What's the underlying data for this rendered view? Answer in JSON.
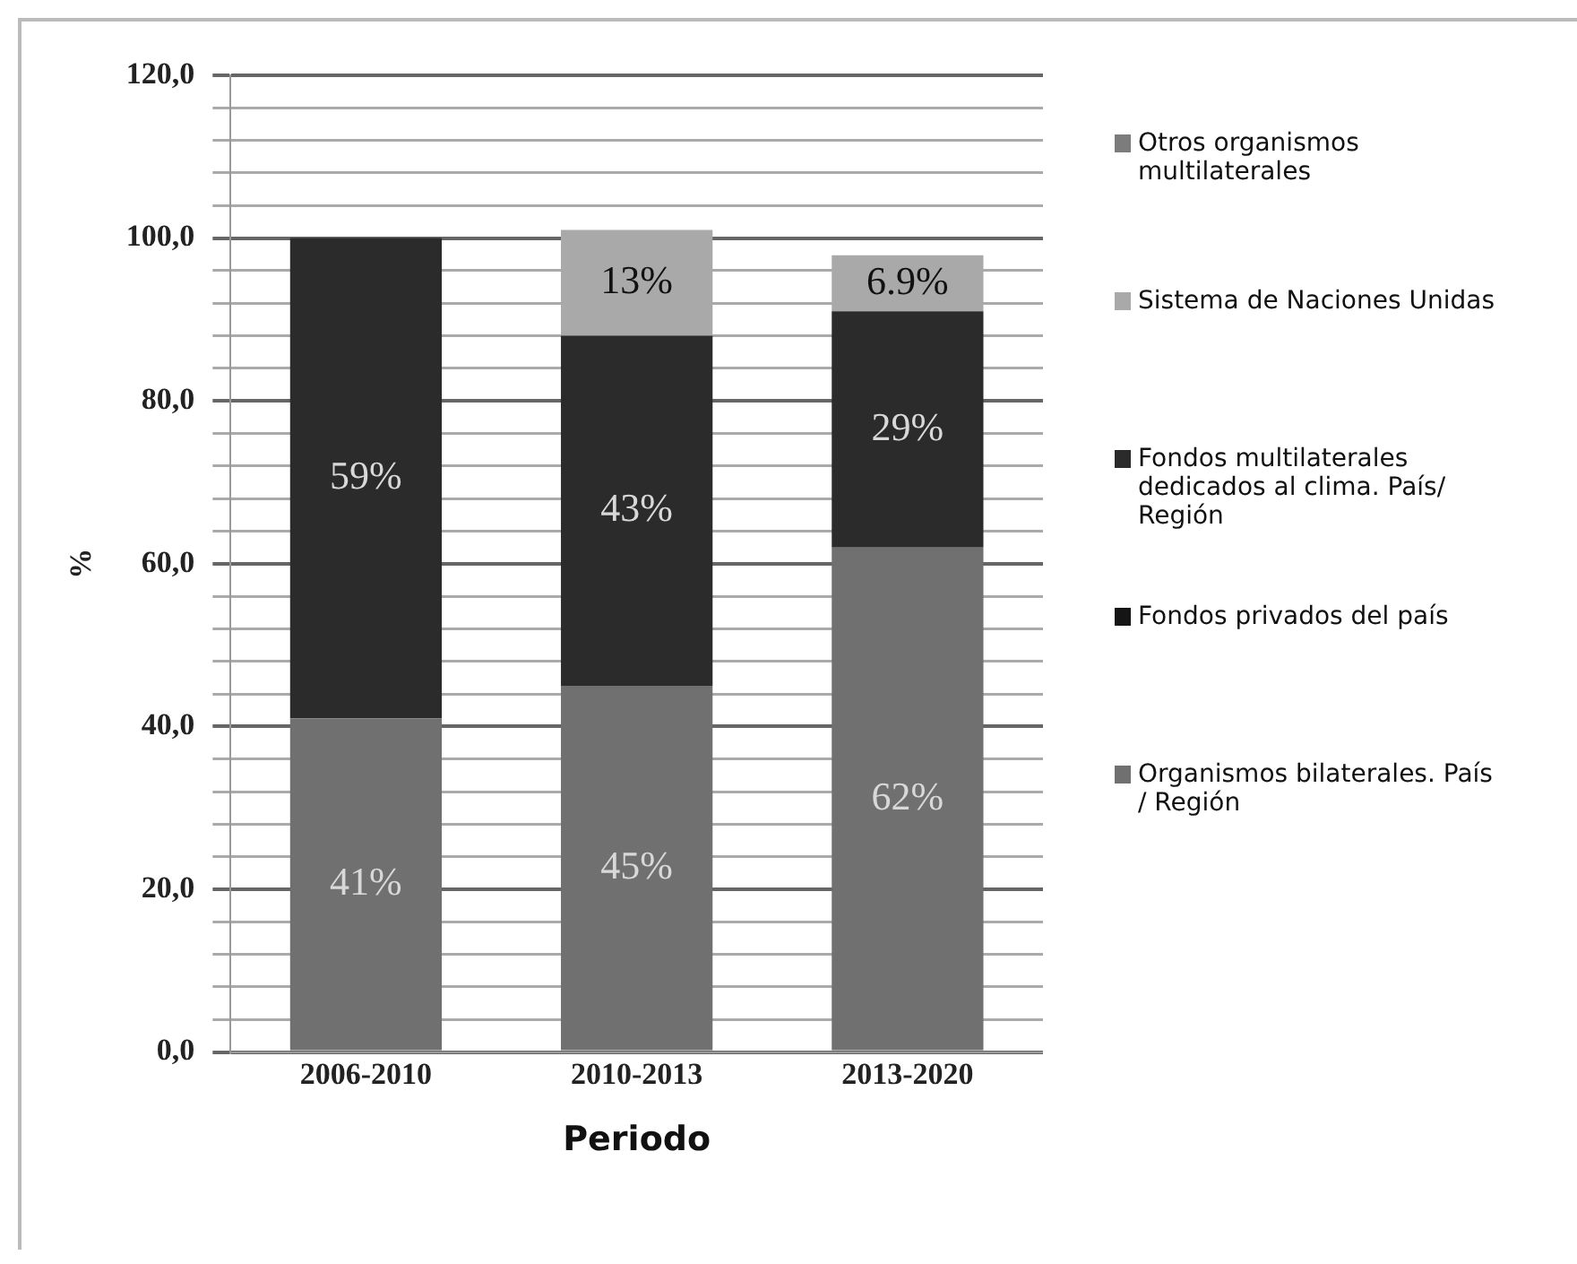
{
  "chart_data": {
    "type": "bar",
    "stacked": true,
    "xlabel": "Periodo",
    "ylabel": "%",
    "categories": [
      "2006-2010",
      "2010-2013",
      "2013-2020"
    ],
    "series": [
      {
        "name": "Organismos bilaterales. País / Región",
        "color": "#707070",
        "values": [
          41,
          45,
          62
        ],
        "value_labels": [
          "41%",
          "45%",
          "62%"
        ]
      },
      {
        "name": "Fondos privados del país",
        "color": "#151515",
        "values": [
          null,
          null,
          null
        ]
      },
      {
        "name": "Fondos multilaterales dedicados al clima. País/ Región",
        "color": "#2b2b2b",
        "values": [
          59,
          43,
          29
        ],
        "value_labels": [
          "59%",
          "43%",
          "29%"
        ]
      },
      {
        "name": "Sistema de Naciones Unidas",
        "color": "#a9a9a9",
        "values": [
          null,
          13,
          6.9
        ],
        "value_labels": [
          null,
          "13%",
          "6.9%"
        ]
      },
      {
        "name": "Otros organismos multilaterales",
        "color": "#7c7c7c",
        "values": [
          null,
          null,
          null
        ]
      }
    ],
    "ylim": [
      0,
      120
    ],
    "yticks": [
      {
        "value": 0,
        "label": "0,0"
      },
      {
        "value": 4,
        "label": null
      },
      {
        "value": 8,
        "label": null
      },
      {
        "value": 12,
        "label": null
      },
      {
        "value": 16,
        "label": null
      },
      {
        "value": 20,
        "label": "20,0"
      },
      {
        "value": 24,
        "label": null
      },
      {
        "value": 28,
        "label": null
      },
      {
        "value": 32,
        "label": null
      },
      {
        "value": 36,
        "label": null
      },
      {
        "value": 40,
        "label": "40,0"
      },
      {
        "value": 44,
        "label": null
      },
      {
        "value": 48,
        "label": null
      },
      {
        "value": 52,
        "label": null
      },
      {
        "value": 56,
        "label": null
      },
      {
        "value": 60,
        "label": "60,0"
      },
      {
        "value": 64,
        "label": null
      },
      {
        "value": 68,
        "label": null
      },
      {
        "value": 72,
        "label": null
      },
      {
        "value": 76,
        "label": null
      },
      {
        "value": 80,
        "label": "80,0"
      },
      {
        "value": 84,
        "label": null
      },
      {
        "value": 88,
        "label": null
      },
      {
        "value": 92,
        "label": null
      },
      {
        "value": 96,
        "label": null
      },
      {
        "value": 100,
        "label": "100,0"
      },
      {
        "value": 104,
        "label": null
      },
      {
        "value": 108,
        "label": null
      },
      {
        "value": 112,
        "label": null
      },
      {
        "value": 116,
        "label": null
      },
      {
        "value": 120,
        "label": "120,0"
      }
    ],
    "grid": "y",
    "legend": "right"
  }
}
